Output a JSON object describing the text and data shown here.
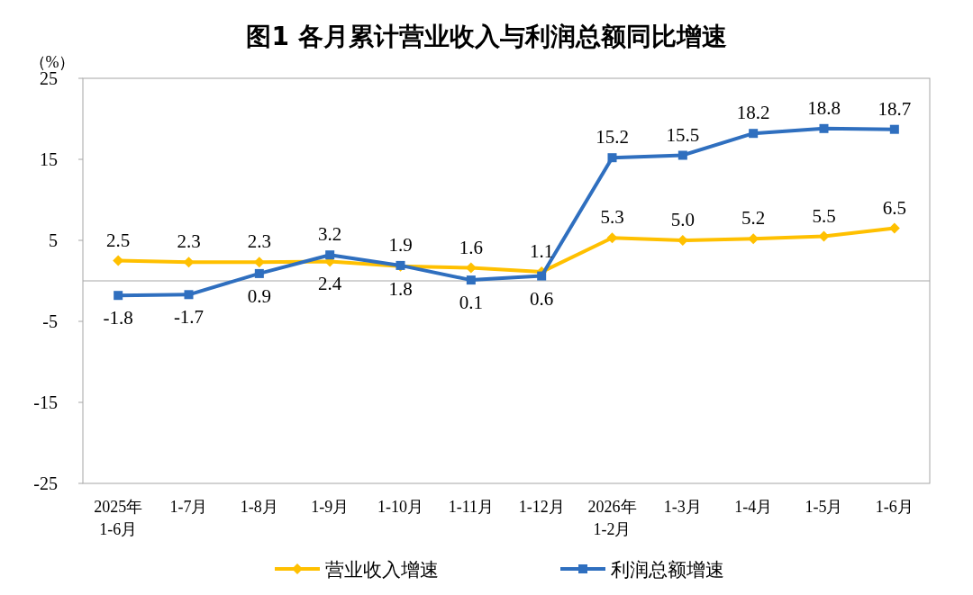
{
  "chart_data": {
    "type": "line",
    "title": "图1  各月累计营业收入与利润总额同比增速",
    "ylabel": "（%）",
    "categories": [
      "2025年\n1-6月",
      "1-7月",
      "1-8月",
      "1-9月",
      "1-10月",
      "1-11月",
      "1-12月",
      "2026年\n1-2月",
      "1-3月",
      "1-4月",
      "1-5月",
      "1-6月"
    ],
    "series": [
      {
        "name": "营业收入增速",
        "color": "#ffc000",
        "marker": "diamond",
        "values": [
          2.5,
          2.3,
          2.3,
          2.4,
          1.8,
          1.6,
          1.1,
          5.3,
          5.0,
          5.2,
          5.5,
          6.5
        ],
        "value_labels": [
          "2.5",
          "2.3",
          "2.3",
          "2.4",
          "1.8",
          "1.6",
          "1.1",
          "5.3",
          "5.0",
          "5.2",
          "5.5",
          "6.5"
        ]
      },
      {
        "name": "利润总额增速",
        "color": "#2f6fbf",
        "marker": "square",
        "values": [
          -1.8,
          -1.7,
          0.9,
          3.2,
          1.9,
          0.1,
          0.6,
          15.2,
          15.5,
          18.2,
          18.8,
          18.7
        ],
        "value_labels": [
          "-1.8",
          "-1.7",
          "0.9",
          "3.2",
          "1.9",
          "0.1",
          "0.6",
          "15.2",
          "15.5",
          "18.2",
          "18.8",
          "18.7"
        ]
      }
    ],
    "ylim": [
      -25,
      25
    ],
    "yticks": [
      -25,
      -15,
      -5,
      5,
      15,
      25
    ],
    "grid": false,
    "legend": "bottom"
  }
}
